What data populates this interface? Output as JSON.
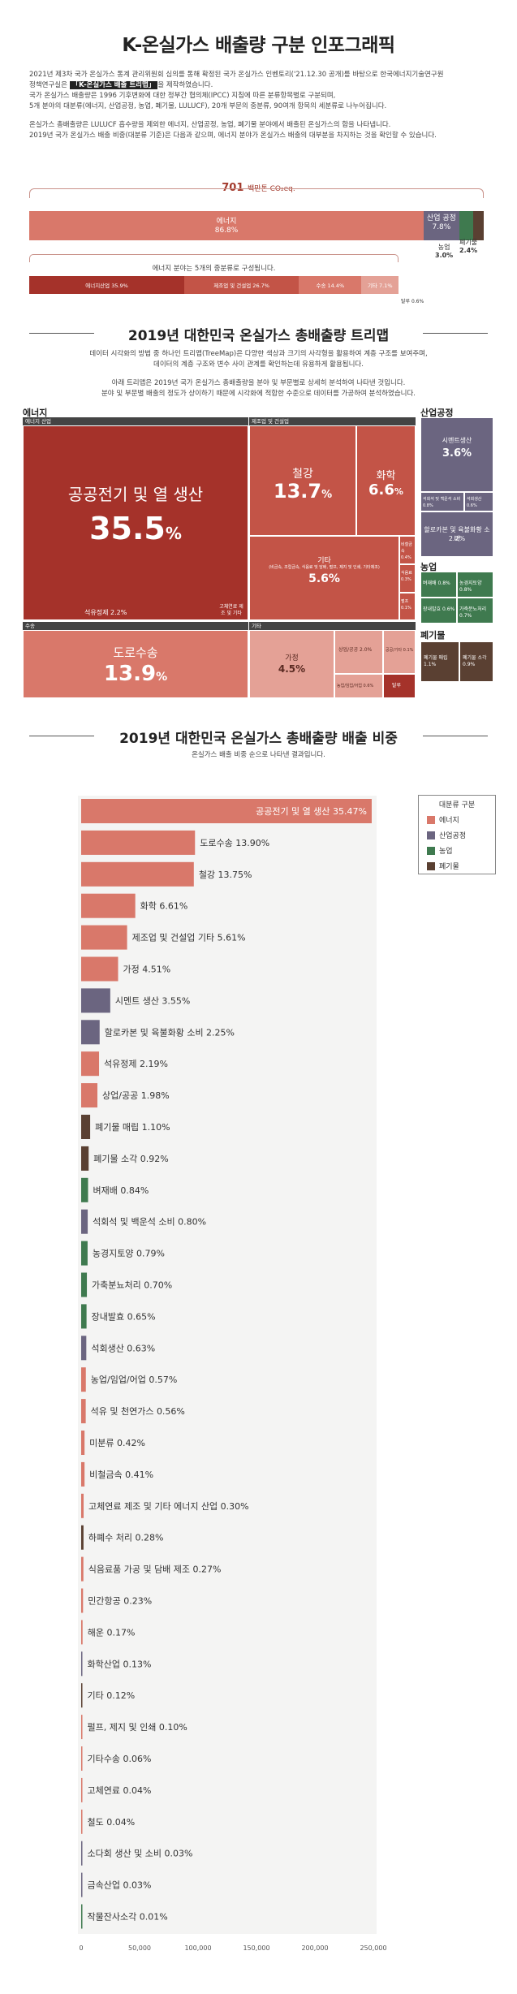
{
  "title": "K-온실가스 배출량 구분 인포그래픽",
  "intro": {
    "p1a": "2021년 제3차 국가 온실가스 통계 관리위원회 심의를 통해 확정된 국가 온실가스 인벤토리('21.12.30 공개)를 바탕으로 한국에너지기술연구원",
    "p1b_pre": "정책연구실은 ",
    "p1b_hl": "「K-온실가스 배출 트리맵」",
    "p1b_post": "을 제작하였습니다.",
    "p1c": "국가 온실가스 배출량은 1996 기후변화에 대한 정부간 협의체(IPCC) 지침에 따른 분류항목별로 구분되며,",
    "p1d": "5개 분야의 대분류(에너지, 산업공정, 농업, 폐기물, LULUCF), 20개 부문의 중분류, 90여개 항목의 세분류로 나누어집니다.",
    "p2a": "온실가스 총배출량은 LULUCF 흡수량을 제외한 에너지, 산업공정, 농업, 폐기물 분야에서 배출된 온실가스의 합을 나타냅니다.",
    "p2b": "2019년 국가 온실가스 배출 비중(대분류 기준)은 다음과 같으며, 에너지 분야가 온실가스 배출의 대부분을 차지하는 것을 확인할 수 있습니다."
  },
  "total": {
    "value": "701",
    "unit": "백만톤 CO₂eq."
  },
  "sectors": [
    {
      "name": "에너지",
      "pct": "86.8%",
      "value": 86.8,
      "color": "#d9786a"
    },
    {
      "name": "산업 공정",
      "pct": "7.8%",
      "value": 7.8,
      "color": "#6b6580"
    },
    {
      "name": "농업",
      "pct": "3.0%",
      "value": 3.0,
      "color": "#3f7a4f"
    },
    {
      "name": "폐기물",
      "pct": "2.4%",
      "value": 2.4,
      "color": "#5a4032"
    }
  ],
  "energy_caption": "에너지 분야는 5개의 중분류로 구성됩니다.",
  "energy_sub": [
    {
      "name": "에너지산업 35.9%",
      "value": 35.9,
      "color": "#a5322a"
    },
    {
      "name": "제조업 및 건설업 26.7%",
      "value": 26.7,
      "color": "#c35447"
    },
    {
      "name": "수송 14.4%",
      "value": 14.4,
      "color": "#d9786a"
    },
    {
      "name": "기타 7.1%",
      "value": 7.1,
      "color": "#e4a196"
    }
  ],
  "energy_tiny": "탈루 0.6%",
  "treemap_section": {
    "title": "2019년 대한민국 온실가스 총배출량 트리맵",
    "desc1": "데이터 시각화의 방법 중 하나인 트리맵(TreeMap)은 다양한 색상과 크기의 사각형을 활용하여 계층 구조를 보여주며,",
    "desc2": "데이터의 계층 구조와 변수 사이 관계를 확인하는데 유용하게 활용됩니다.",
    "desc3": "아래 트리맵은 2019년 국가 온실가스 총배출량을 분야 및 부문별로 상세히 분석하여 나타낸 것입니다.",
    "desc4": "분야 및 부문별 배출의 정도가 상이하기 때문에 시각화에 적합한 수준으로 데이터를 가공하여 분석하였습니다."
  },
  "treemap": {
    "energy_head": "에너지",
    "industry_head": "산업공정",
    "agri_head": "농업",
    "waste_head": "폐기물",
    "energy_industry": "에너지 산업",
    "manufacturing": "제조업 및 건설업",
    "transport": "수송",
    "other": "기타",
    "power_name": "공공전기 및 열 생산",
    "power_pct": "35.5",
    "oil_refining": "석유정제 2.2%",
    "solid_fuel": "고체연료 제조 및 기타",
    "steel_name": "철강",
    "steel_pct": "13.7",
    "chem_name": "화학",
    "chem_pct": "6.6",
    "mfg_other": "기타",
    "mfg_other_sub": "(비금속, 조립금속, 식음료 및 담배, 펄프, 제지 및 인쇄, 기타제조)",
    "mfg_other_pct": "5.6%",
    "nonferrous": "비철금속 0.4%",
    "food": "식음료 0.3%",
    "pulp": "펄프 0.1%",
    "road_name": "도로수송",
    "road_pct": "13.9",
    "home_name": "가정",
    "home_pct": "4.5%",
    "commercial": "상업/공공 2.0%",
    "agri_fish": "농업/임업/어업 0.6%",
    "public_other": "공공/기타 0.1%",
    "leak": "탈루",
    "cement_name": "시멘트생산",
    "cement_pct": "3.6%",
    "lime": "석회석 및 백운석 소비 0.8%",
    "limeprod": "석회생산 0.6%",
    "halocarbon": "할로카본 및 육불화황 소비",
    "halocarbon_pct": "2.2%",
    "rice": "벼재배 0.8%",
    "soil": "농경지토양 0.8%",
    "enteric": "장내발효 0.6%",
    "manure": "가축분뇨처리 0.7%",
    "landfill": "폐기물 매립 1.1%",
    "incineration": "폐기물 소각 0.9%"
  },
  "bar_section": {
    "title": "2019년 대한민국 온실가스 총배출량 배출 비중",
    "desc": "온실가스 배출 비중 순으로 나타낸 결과입니다."
  },
  "legend": {
    "title": "대분류 구분",
    "items": [
      {
        "name": "에너지",
        "color": "#d9786a"
      },
      {
        "name": "산업공정",
        "color": "#6b6580"
      },
      {
        "name": "농업",
        "color": "#3f7a4f"
      },
      {
        "name": "폐기물",
        "color": "#5a4032"
      }
    ]
  },
  "chart_data": {
    "type": "bar",
    "orientation": "horizontal",
    "xlim": [
      0,
      250000
    ],
    "ticks": [
      "0",
      "50,000",
      "100,000",
      "150,000",
      "200,000",
      "250,000"
    ],
    "tick_values": [
      0,
      50000,
      100000,
      150000,
      200000,
      250000
    ],
    "categories": [
      "공공전기 및 열 생산",
      "도로수송",
      "철강",
      "화학",
      "제조업 및 건설업 기타",
      "가정",
      "시멘트 생산",
      "할로카본 및 육불화황 소비",
      "석유정제",
      "상업/공공",
      "폐기물 매립",
      "폐기물 소각",
      "벼재배",
      "석회석 및 백운석 소비",
      "농경지토양",
      "가축분뇨처리",
      "장내발효",
      "석회생산",
      "농업/임업/어업",
      "석유 및 천연가스",
      "미분류",
      "비철금속",
      "고체연료 제조 및 기타 에너지 산업",
      "하폐수 처리",
      "식음료품 가공 및 담배 제조",
      "민간항공",
      "해운",
      "화학산업",
      "기타",
      "펄프, 제지 및 인쇄",
      "기타수송",
      "고체연료",
      "철도",
      "소다회 생산 및 소비",
      "금속산업",
      "작물잔사소각"
    ],
    "labels": [
      "35.47%",
      "13.90%",
      "13.75%",
      "6.61%",
      "5.61%",
      "4.51%",
      "3.55%",
      "2.25%",
      "2.19%",
      "1.98%",
      "1.10%",
      "0.92%",
      "0.84%",
      "0.80%",
      "0.79%",
      "0.70%",
      "0.65%",
      "0.63%",
      "0.57%",
      "0.56%",
      "0.42%",
      "0.41%",
      "0.30%",
      "0.28%",
      "0.27%",
      "0.23%",
      "0.17%",
      "0.13%",
      "0.12%",
      "0.10%",
      "0.06%",
      "0.04%",
      "0.04%",
      "0.03%",
      "0.03%",
      "0.01%"
    ],
    "values": [
      248600,
      97400,
      96400,
      46300,
      39300,
      31600,
      24900,
      15800,
      15300,
      13900,
      7700,
      6400,
      5900,
      5600,
      5500,
      4900,
      4600,
      4400,
      4000,
      3900,
      2900,
      2900,
      2100,
      2000,
      1900,
      1600,
      1200,
      900,
      800,
      700,
      400,
      300,
      300,
      200,
      200,
      100
    ],
    "groups": [
      "에너지",
      "에너지",
      "에너지",
      "에너지",
      "에너지",
      "에너지",
      "산업공정",
      "산업공정",
      "에너지",
      "에너지",
      "폐기물",
      "폐기물",
      "농업",
      "산업공정",
      "농업",
      "농업",
      "농업",
      "산업공정",
      "에너지",
      "에너지",
      "에너지",
      "에너지",
      "에너지",
      "폐기물",
      "에너지",
      "에너지",
      "에너지",
      "산업공정",
      "폐기물",
      "에너지",
      "에너지",
      "에너지",
      "에너지",
      "산업공정",
      "산업공정",
      "농업"
    ]
  }
}
